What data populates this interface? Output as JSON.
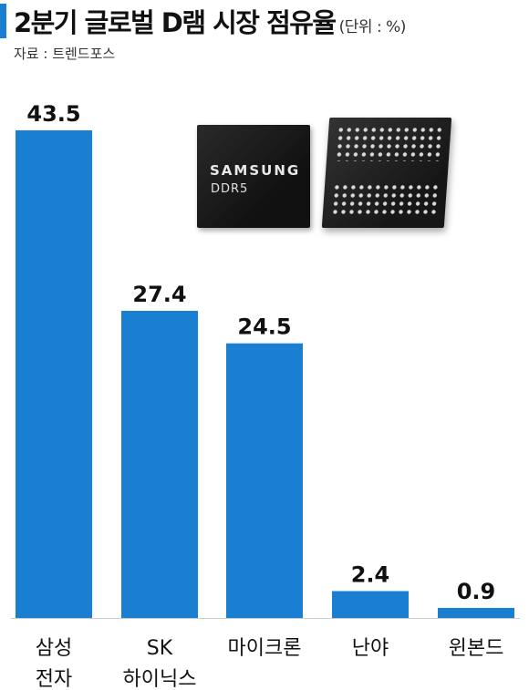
{
  "header": {
    "title": "2분기 글로벌 D램 시장 점유율",
    "unit": "(단위 : %)",
    "source": "자료 : 트렌드포스"
  },
  "photo": {
    "chip_brand": "SAMSUNG",
    "chip_model": "DDR5"
  },
  "colors": {
    "bar": "#1b7fd1",
    "accent": "#1b7fd1",
    "baseline": "#cccccc"
  },
  "chart_data": {
    "type": "bar",
    "title": "2분기 글로벌 D램 시장 점유율",
    "unit": "%",
    "categories": [
      [
        "삼성",
        "전자"
      ],
      [
        "SK",
        "하이닉스"
      ],
      [
        "마이크론"
      ],
      [
        "난야"
      ],
      [
        "윈본드"
      ]
    ],
    "values": [
      43.5,
      27.4,
      24.5,
      2.4,
      0.9
    ],
    "value_labels": [
      "43.5",
      "27.4",
      "24.5",
      "2.4",
      "0.9"
    ],
    "xlabel": "",
    "ylabel": "",
    "grid": false,
    "legend": "none"
  }
}
